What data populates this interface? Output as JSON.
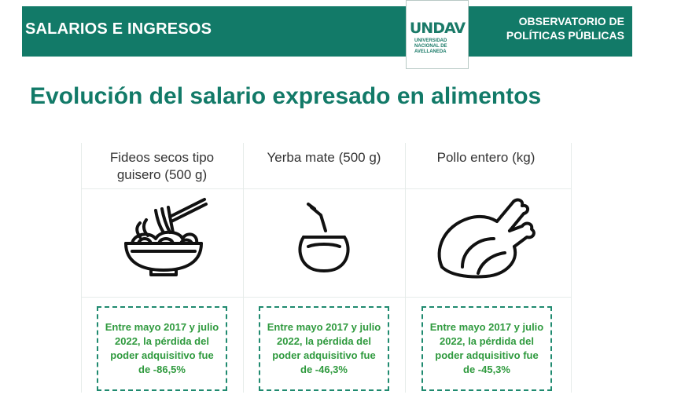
{
  "header": {
    "section_title": "SALARIOS E INGRESOS",
    "org_line1": "OBSERVATORIO DE",
    "org_line2": "POLÍTICAS PÚBLICAS",
    "logo": {
      "mark": "UNDAV",
      "line1": "UNIVERSIDAD",
      "line2": "NACIONAL DE",
      "line3": "AVELLANEDA"
    },
    "color": "#127a68"
  },
  "title": "Evolución del salario expresado en alimentos",
  "items": [
    {
      "label_line1": "Fideos secos tipo",
      "label_line2": "guisero (500 g)",
      "icon": "noodle-bowl-icon",
      "note": "Entre mayo 2017 y julio 2022, la pérdida del poder adquisitivo fue de -86,5%"
    },
    {
      "label_line1": "Yerba mate (500 g)",
      "label_line2": "",
      "icon": "mate-gourd-icon",
      "note": "Entre mayo 2017 y julio 2022, la pérdida del poder adquisitivo fue de -46,3%"
    },
    {
      "label_line1": "Pollo entero (kg)",
      "label_line2": "",
      "icon": "roast-chicken-icon",
      "note": "Entre mayo 2017 y julio 2022, la pérdida del poder adquisitivo fue de -45,3%"
    }
  ],
  "colors": {
    "accent": "#127a68",
    "note_text": "#2f9a3e",
    "note_border": "#1f8a6f"
  }
}
